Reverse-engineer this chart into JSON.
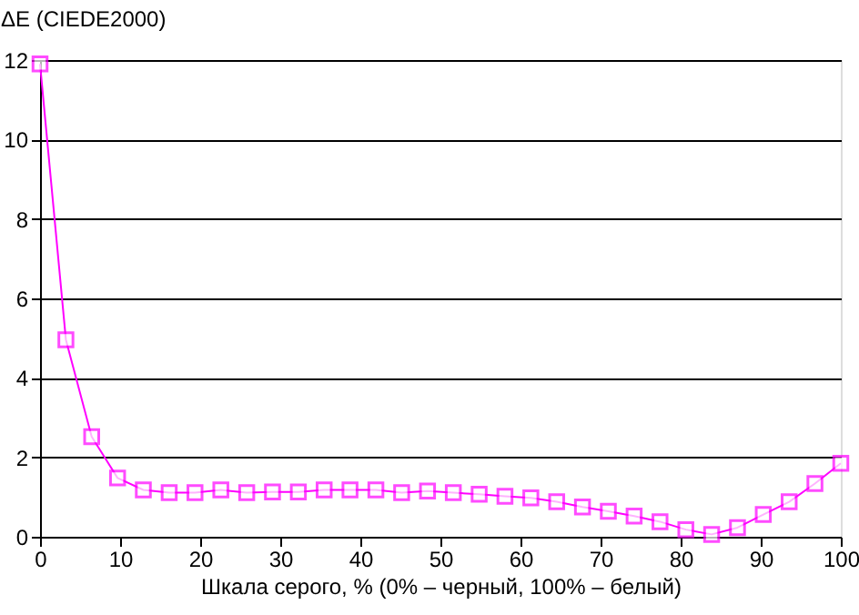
{
  "chart_data": {
    "type": "line",
    "xlabel": "Шкала серого, % (0% – черный, 100% – белый)",
    "ylabel": "ΔE (CIEDE2000)",
    "x": [
      0,
      3.23,
      6.45,
      9.68,
      12.9,
      16.13,
      19.35,
      22.58,
      25.81,
      29.03,
      32.26,
      35.48,
      38.71,
      41.94,
      45.16,
      48.39,
      51.61,
      54.84,
      58.06,
      61.29,
      64.52,
      67.74,
      70.97,
      74.19,
      77.42,
      80.65,
      83.87,
      87.1,
      90.32,
      93.55,
      96.77,
      100
    ],
    "series": [
      {
        "color": "#ff00ff",
        "values": [
          11.9,
          4.96,
          2.52,
          1.48,
          1.18,
          1.11,
          1.11,
          1.18,
          1.11,
          1.13,
          1.13,
          1.18,
          1.18,
          1.18,
          1.11,
          1.15,
          1.11,
          1.07,
          1.02,
          0.98,
          0.88,
          0.75,
          0.64,
          0.52,
          0.38,
          0.18,
          0.06,
          0.23,
          0.56,
          0.88,
          1.34,
          1.85
        ]
      }
    ],
    "xlim": [
      0,
      100
    ],
    "xticks": [
      0,
      10,
      20,
      30,
      40,
      50,
      60,
      70,
      80,
      90,
      100
    ],
    "ylim": [
      0,
      12
    ],
    "yticks": [
      0,
      2,
      4,
      6,
      8,
      10,
      12
    ],
    "grid": "y",
    "marker": "square",
    "line_style": "solid",
    "legend": false
  }
}
